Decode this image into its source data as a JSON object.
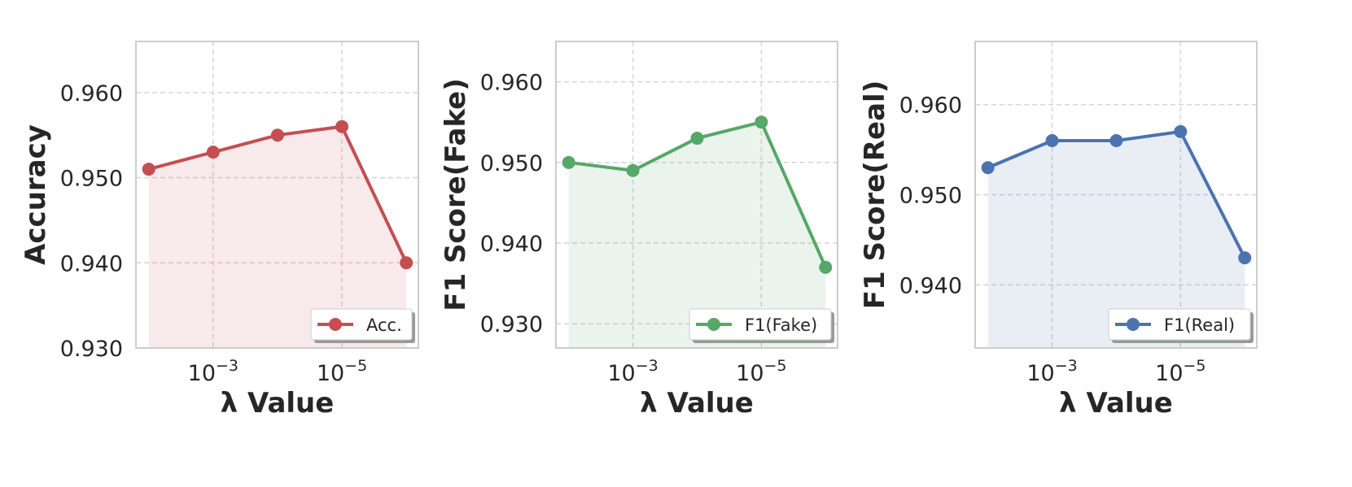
{
  "chart_data": [
    {
      "type": "line",
      "xscale": "log",
      "grid": true,
      "fill": true,
      "legend": "lower right",
      "xlabel": "λ Value",
      "ylabel": "Accuracy",
      "x": [
        0.01,
        0.001,
        0.0001,
        1e-05,
        1e-06
      ],
      "xlim": [
        0.0158,
        6.5e-07
      ],
      "xticks": [
        {
          "value": 0.001,
          "label": "10",
          "exponent": "−3"
        },
        {
          "value": 1e-05,
          "label": "10",
          "exponent": "−5"
        }
      ],
      "ylim": [
        0.93,
        0.966
      ],
      "yticks": [
        {
          "value": 0.93,
          "label": "0.930"
        },
        {
          "value": 0.94,
          "label": "0.940"
        },
        {
          "value": 0.95,
          "label": "0.950"
        },
        {
          "value": 0.96,
          "label": "0.960"
        }
      ],
      "series": [
        {
          "name": "Acc.",
          "color": "#c44e52",
          "values": [
            0.951,
            0.953,
            0.955,
            0.956,
            0.94
          ]
        }
      ]
    },
    {
      "type": "line",
      "xscale": "log",
      "grid": true,
      "fill": true,
      "legend": "lower right",
      "xlabel": "λ Value",
      "ylabel": "F1 Score(Fake)",
      "x": [
        0.01,
        0.001,
        0.0001,
        1e-05,
        1e-06
      ],
      "xlim": [
        0.0158,
        6.5e-07
      ],
      "xticks": [
        {
          "value": 0.001,
          "label": "10",
          "exponent": "−3"
        },
        {
          "value": 1e-05,
          "label": "10",
          "exponent": "−5"
        }
      ],
      "ylim": [
        0.927,
        0.965
      ],
      "yticks": [
        {
          "value": 0.93,
          "label": "0.930"
        },
        {
          "value": 0.94,
          "label": "0.940"
        },
        {
          "value": 0.95,
          "label": "0.950"
        },
        {
          "value": 0.96,
          "label": "0.960"
        }
      ],
      "series": [
        {
          "name": "F1(Fake)",
          "color": "#55a868",
          "values": [
            0.95,
            0.949,
            0.953,
            0.955,
            0.937
          ]
        }
      ]
    },
    {
      "type": "line",
      "xscale": "log",
      "grid": true,
      "fill": true,
      "legend": "lower right",
      "xlabel": "λ Value",
      "ylabel": "F1 Score(Real)",
      "x": [
        0.01,
        0.001,
        0.0001,
        1e-05,
        1e-06
      ],
      "xlim": [
        0.0158,
        6.5e-07
      ],
      "xticks": [
        {
          "value": 0.001,
          "label": "10",
          "exponent": "−3"
        },
        {
          "value": 1e-05,
          "label": "10",
          "exponent": "−5"
        }
      ],
      "ylim": [
        0.933,
        0.967
      ],
      "yticks": [
        {
          "value": 0.94,
          "label": "0.940"
        },
        {
          "value": 0.95,
          "label": "0.950"
        },
        {
          "value": 0.96,
          "label": "0.960"
        }
      ],
      "series": [
        {
          "name": "F1(Real)",
          "color": "#4c72b0",
          "values": [
            0.953,
            0.956,
            0.956,
            0.957,
            0.943
          ]
        }
      ]
    }
  ]
}
